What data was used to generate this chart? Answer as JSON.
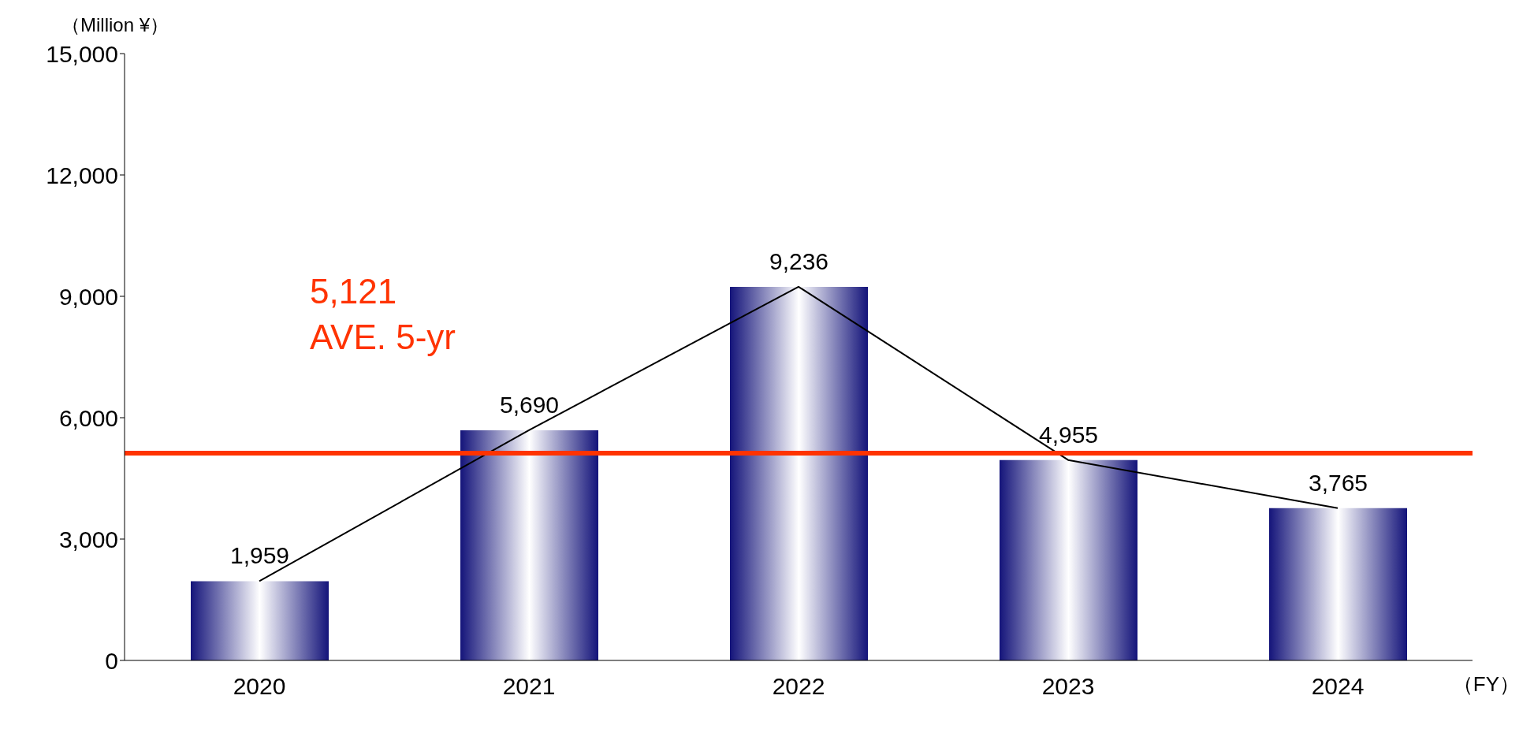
{
  "chart_data": {
    "type": "bar",
    "ylabel": "（Million ¥）",
    "xlabel": "（FY）",
    "categories": [
      "2020",
      "2021",
      "2022",
      "2023",
      "2024"
    ],
    "series": [
      {
        "color": "#14147a",
        "values": [
          1959,
          5690,
          9236,
          4955,
          3765
        ],
        "value_labels": [
          "1,959",
          "5,690",
          "9,236",
          "4,955",
          "3,765"
        ]
      },
      {
        "type": "line",
        "color": "#000000",
        "values": [
          1959,
          5690,
          9236,
          4955,
          3765
        ]
      }
    ],
    "ylim": [
      0,
      15000
    ],
    "yticks": [
      0,
      {
        "value": 3000,
        "label": "3,000"
      },
      {
        "value": 6000,
        "label": "6,000"
      },
      {
        "value": 9000,
        "label": "9,000"
      },
      {
        "value": 12000,
        "label": "12,000"
      },
      {
        "value": 15000,
        "label": "15,000"
      }
    ],
    "grid": false,
    "legend": false,
    "marker": "none",
    "ref_lines": [
      {
        "axis": "y",
        "value": 5121,
        "label": "5,121\nAVE. 5-yr",
        "color": "#ff3300"
      }
    ]
  }
}
